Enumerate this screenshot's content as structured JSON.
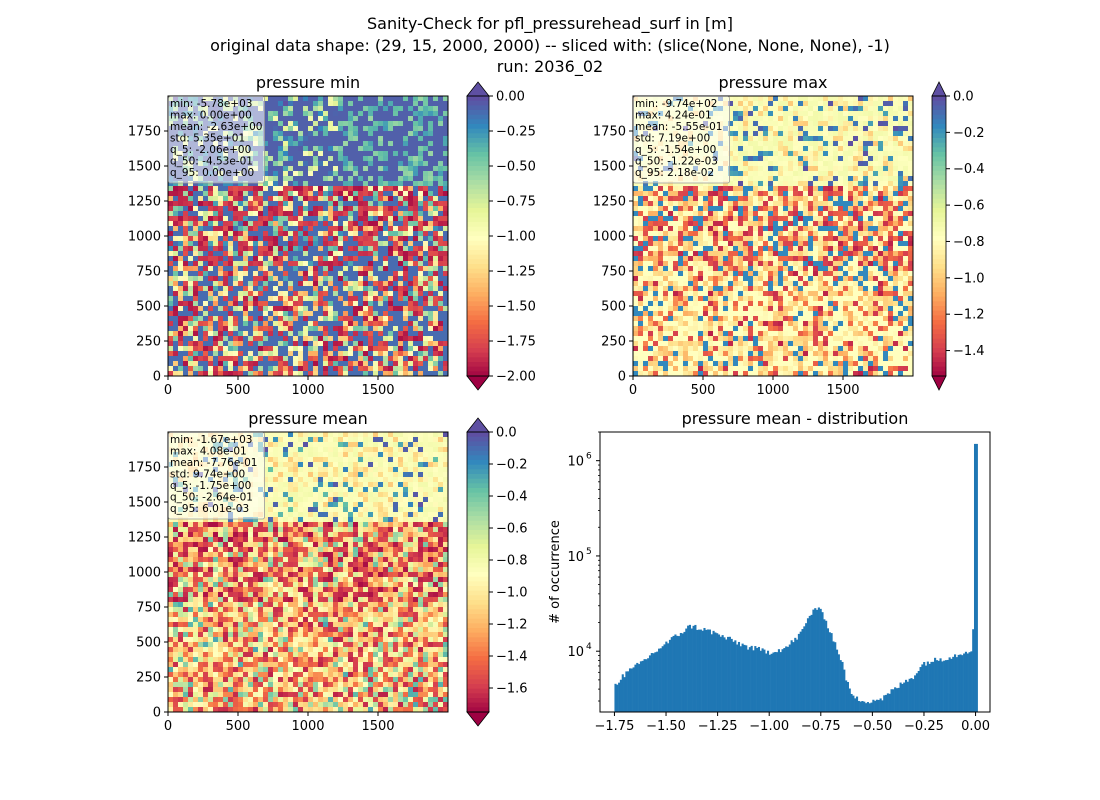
{
  "figure": {
    "suptitle_lines": [
      "Sanity-Check for pfl_pressurehead_surf in [m]",
      "original data shape: (29, 15, 2000, 2000) -- sliced with: (slice(None, None, None), -1)",
      "run: 2036_02"
    ]
  },
  "colors": {
    "spectral": [
      "#9e0142",
      "#d53e4f",
      "#f46d43",
      "#fdae61",
      "#fee08b",
      "#ffffbf",
      "#e6f598",
      "#abdda4",
      "#66c2a5",
      "#3288bd",
      "#5e4fa2"
    ],
    "hist_bar": "#1f77b4"
  },
  "chart_data": [
    {
      "type": "heatmap",
      "title": "pressure min",
      "xticks": [
        "0",
        "500",
        "1000",
        "1500"
      ],
      "yticks": [
        "0",
        "250",
        "500",
        "750",
        "1000",
        "1250",
        "1500",
        "1750"
      ],
      "xlim": [
        0,
        2000
      ],
      "ylim": [
        0,
        2000
      ],
      "stats": [
        "min: -5.78e+03",
        "max: 0.00e+00",
        "mean: -2.63e+00",
        "std: 5.35e+01",
        "q_5: -2.06e+00",
        "q_50: -4.53e-01",
        "q_95: 0.00e+00"
      ],
      "colorbar": {
        "range": [
          -2.0,
          0.0
        ],
        "ticks": [
          "0.00",
          "−0.25",
          "−0.50",
          "−0.75",
          "−1.00",
          "−1.25",
          "−1.50",
          "−1.75",
          "−2.00"
        ],
        "extend": "both",
        "colormap": "Spectral"
      }
    },
    {
      "type": "heatmap",
      "title": "pressure max",
      "xticks": [
        "0",
        "500",
        "1000",
        "1500"
      ],
      "yticks": [
        "0",
        "250",
        "500",
        "750",
        "1000",
        "1250",
        "1500",
        "1750"
      ],
      "xlim": [
        0,
        2000
      ],
      "ylim": [
        0,
        2000
      ],
      "stats": [
        "min: -9.74e+02",
        "max: 4.24e-01",
        "mean: -5.55e-01",
        "std: 7.19e+00",
        "q_5: -1.54e+00",
        "q_50: -1.22e-03",
        "q_95: 2.18e-02"
      ],
      "colorbar": {
        "range": [
          -1.54,
          0.0
        ],
        "ticks": [
          "0.0",
          "−0.2",
          "−0.4",
          "−0.6",
          "−0.8",
          "−1.0",
          "−1.2",
          "−1.4"
        ],
        "extend": "both",
        "colormap": "Spectral"
      }
    },
    {
      "type": "heatmap",
      "title": "pressure mean",
      "xticks": [
        "0",
        "500",
        "1000",
        "1500"
      ],
      "yticks": [
        "0",
        "250",
        "500",
        "750",
        "1000",
        "1250",
        "1500",
        "1750"
      ],
      "xlim": [
        0,
        2000
      ],
      "ylim": [
        0,
        2000
      ],
      "stats": [
        "min: -1.67e+03",
        "max: 4.08e-01",
        "mean: -7.76e-01",
        "std: 9.74e+00",
        "q_5: -1.75e+00",
        "q_50: -2.64e-01",
        "q_95: 6.01e-03"
      ],
      "colorbar": {
        "range": [
          -1.75,
          0.0
        ],
        "ticks": [
          "0.0",
          "−0.2",
          "−0.4",
          "−0.6",
          "−0.8",
          "−1.0",
          "−1.2",
          "−1.4",
          "−1.6"
        ],
        "extend": "both",
        "colormap": "Spectral"
      }
    },
    {
      "type": "bar",
      "title": "pressure mean - distribution",
      "ylabel": "# of occurrence",
      "yscale": "log",
      "xlim": [
        -1.82,
        0.07
      ],
      "ylim": [
        2300,
        2000000
      ],
      "xticks": [
        "−1.75",
        "−1.50",
        "−1.25",
        "−1.00",
        "−0.75",
        "−0.50",
        "−0.25",
        "0.00"
      ],
      "yticks": [
        "10^4",
        "10^5",
        "10^6"
      ],
      "bins": {
        "start": -1.75,
        "end": 0.01,
        "count": 200
      },
      "counts_keypoints": [
        [
          -1.75,
          4200
        ],
        [
          -1.72,
          5300
        ],
        [
          -1.65,
          6800
        ],
        [
          -1.55,
          10000
        ],
        [
          -1.45,
          14500
        ],
        [
          -1.38,
          18500
        ],
        [
          -1.28,
          16000
        ],
        [
          -1.2,
          13500
        ],
        [
          -1.1,
          11000
        ],
        [
          -1.0,
          9800
        ],
        [
          -0.92,
          10800
        ],
        [
          -0.85,
          15000
        ],
        [
          -0.82,
          20000
        ],
        [
          -0.78,
          29000
        ],
        [
          -0.74,
          25000
        ],
        [
          -0.69,
          13500
        ],
        [
          -0.65,
          8000
        ],
        [
          -0.62,
          4500
        ],
        [
          -0.59,
          3200
        ],
        [
          -0.52,
          3000
        ],
        [
          -0.45,
          3200
        ],
        [
          -0.38,
          4200
        ],
        [
          -0.3,
          5500
        ],
        [
          -0.25,
          7500
        ],
        [
          -0.2,
          8000
        ],
        [
          -0.1,
          9000
        ],
        [
          -0.02,
          10500
        ],
        [
          -0.005,
          26000
        ]
      ],
      "spike": {
        "x": 0.0,
        "count": 1500000
      }
    }
  ]
}
